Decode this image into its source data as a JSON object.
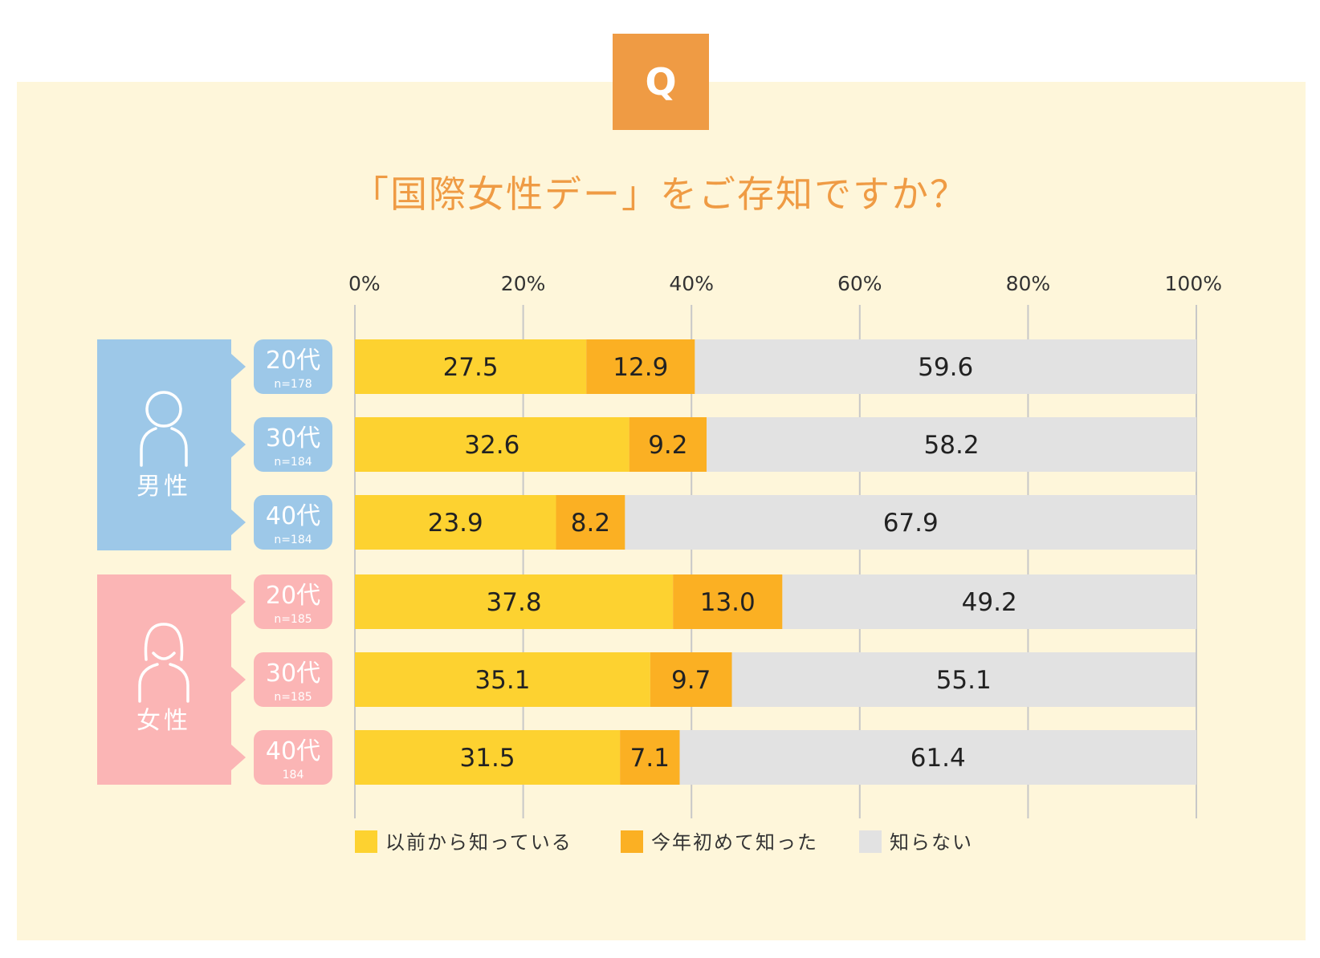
{
  "badge": {
    "label": "Q"
  },
  "colors": {
    "panel_bg": "#fef6da",
    "badge_bg": "#ef9b44",
    "title": "#ef9b44",
    "male": "#9dc8e8",
    "female": "#fbb5b5",
    "series_known_before": "#fdd230",
    "series_learned_this_year": "#fbb023",
    "series_unknown": "#e2e2e2",
    "grid": "#c8c8c8"
  },
  "groups": [
    {
      "label": "男性",
      "icon": "male-person-icon",
      "color_key": "male"
    },
    {
      "label": "女性",
      "icon": "female-person-icon",
      "color_key": "female"
    }
  ],
  "chart_data": {
    "type": "bar",
    "orientation": "horizontal",
    "stacked": true,
    "title": "「国際女性デー」をご存知ですか？",
    "xlim": [
      0,
      100
    ],
    "x_ticks": [
      "0%",
      "20%",
      "40%",
      "60%",
      "80%",
      "100%"
    ],
    "grid": true,
    "legend_position": "bottom",
    "categories": [
      {
        "group": "男性",
        "age": "20代",
        "n": "n=178"
      },
      {
        "group": "男性",
        "age": "30代",
        "n": "n=184"
      },
      {
        "group": "男性",
        "age": "40代",
        "n": "n=184"
      },
      {
        "group": "女性",
        "age": "20代",
        "n": "n=185"
      },
      {
        "group": "女性",
        "age": "30代",
        "n": "n=185"
      },
      {
        "group": "女性",
        "age": "40代",
        "n": "184"
      }
    ],
    "series": [
      {
        "name": "以前から知っている",
        "color_key": "series_known_before",
        "values": [
          27.5,
          32.6,
          23.9,
          37.8,
          35.1,
          31.5
        ],
        "labels": [
          "27.5",
          "32.6",
          "23.9",
          "37.8",
          "35.1",
          "31.5"
        ]
      },
      {
        "name": "今年初めて知った",
        "color_key": "series_learned_this_year",
        "values": [
          12.9,
          9.2,
          8.2,
          13.0,
          9.7,
          7.1
        ],
        "labels": [
          "12.9",
          "9.2",
          "8.2",
          "13.0",
          "9.7",
          "7.1"
        ]
      },
      {
        "name": "知らない",
        "color_key": "series_unknown",
        "values": [
          59.6,
          58.2,
          67.9,
          49.2,
          55.1,
          61.4
        ],
        "labels": [
          "59.6",
          "58.2",
          "67.9",
          "49.2",
          "55.1",
          "61.4"
        ]
      }
    ]
  }
}
